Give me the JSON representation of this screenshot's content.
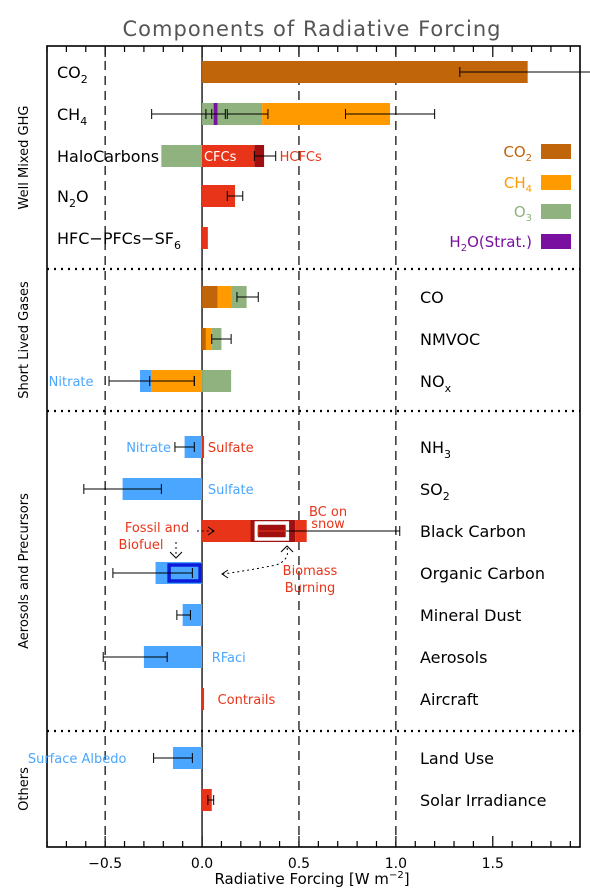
{
  "chart_data": {
    "type": "bar",
    "title": "Components of Radiative Forcing",
    "xlabel_main": "Radiative Forcing [W m",
    "xlabel_sup": "−2",
    "xlabel_close": "]",
    "xlim": [
      -0.8,
      1.95
    ],
    "xticks": [
      -0.5,
      0.0,
      0.5,
      1.0,
      1.5
    ],
    "xtick_labels": [
      "−0.5",
      "0.0",
      "0.5",
      "1.0",
      "1.5"
    ],
    "legend": [
      {
        "label": "CO",
        "sub": "2",
        "color": "#c0650a"
      },
      {
        "label": "CH",
        "sub": "4",
        "color": "#ff9a00"
      },
      {
        "label": "O",
        "sub": "3",
        "color": "#8fb27f"
      },
      {
        "label": "H",
        "sub": "2",
        "label_rest": "O(Strat.)",
        "color": "#7a10a0"
      }
    ],
    "sections": [
      {
        "name": "Well Mixed GHG"
      },
      {
        "name": "Short Lived Gases"
      },
      {
        "name": "Aerosols and Precursors"
      },
      {
        "name": "Others"
      }
    ],
    "rows": [
      {
        "label": "CO",
        "sub": "2",
        "side": "left",
        "segments": [
          {
            "from": 0,
            "to": 1.68,
            "color": "#c0650a"
          }
        ],
        "errors": [
          {
            "value": 1.68,
            "low": 1.33,
            "high": 2.03
          }
        ]
      },
      {
        "label": "CH",
        "sub": "4",
        "side": "left",
        "segments": [
          {
            "from": 0,
            "to": 0.08,
            "color": "#7a10a0"
          },
          {
            "from": 0.08,
            "to": 0.31,
            "color": "#8fb27f"
          },
          {
            "from": 0.31,
            "to": 0.97,
            "color": "#ff9a00"
          },
          {
            "from": 0.06,
            "to": 0.0,
            "color": "#8fb27f"
          }
        ],
        "errors": [
          {
            "value": 0.97,
            "low": 0.74,
            "high": 1.2
          },
          {
            "value": 0.24,
            "low": 0.13,
            "high": 0.34
          },
          {
            "value": 0.07,
            "low": 0.02,
            "high": 0.12
          },
          {
            "value": -0.11,
            "low": -0.26,
            "high": 0.05
          }
        ]
      },
      {
        "label": "HaloCarbons",
        "side": "left",
        "segments": [
          {
            "from": -0.21,
            "to": 0,
            "color": "#8fb27f"
          },
          {
            "from": 0,
            "to": 0.27,
            "color": "#e8351a"
          },
          {
            "from": 0.27,
            "to": 0.32,
            "color": "#a01010"
          }
        ],
        "errors": [
          {
            "value": 0.32,
            "low": 0.27,
            "high": 0.38
          }
        ],
        "annotations": [
          {
            "text": "CFCs",
            "x": 0.01,
            "color": "#ffffff",
            "anchor": "start"
          },
          {
            "text": "HCFCs",
            "x": 0.4,
            "color": "#e8351a",
            "anchor": "start"
          }
        ]
      },
      {
        "label": "N",
        "sub": "2",
        "label_rest": "O",
        "side": "left",
        "segments": [
          {
            "from": 0,
            "to": 0.17,
            "color": "#e8351a"
          }
        ],
        "errors": [
          {
            "value": 0.17,
            "low": 0.13,
            "high": 0.21
          }
        ]
      },
      {
        "label": "HFC−PFCs−SF",
        "sub": "6",
        "side": "left",
        "segments": [
          {
            "from": 0,
            "to": 0.03,
            "color": "#e8351a"
          }
        ],
        "errors": []
      },
      {
        "label": "CO",
        "side": "right",
        "segments": [
          {
            "from": 0,
            "to": 0.08,
            "color": "#c0650a"
          },
          {
            "from": 0.08,
            "to": 0.15,
            "color": "#ff9a00"
          },
          {
            "from": 0.15,
            "to": 0.23,
            "color": "#8fb27f"
          }
        ],
        "errors": [
          {
            "value": 0.23,
            "low": 0.18,
            "high": 0.29
          }
        ]
      },
      {
        "label": "NMVOC",
        "side": "right",
        "segments": [
          {
            "from": 0,
            "to": 0.02,
            "color": "#c0650a"
          },
          {
            "from": 0.02,
            "to": 0.05,
            "color": "#ff9a00"
          },
          {
            "from": 0.05,
            "to": 0.1,
            "color": "#8fb27f"
          }
        ],
        "errors": [
          {
            "value": 0.1,
            "low": 0.05,
            "high": 0.15
          }
        ]
      },
      {
        "label": "NO",
        "sub": "x",
        "side": "right",
        "segments": [
          {
            "from": -0.32,
            "to": -0.26,
            "color": "#4aa6ff"
          },
          {
            "from": -0.26,
            "to": 0,
            "color": "#ff9a00"
          },
          {
            "from": 0,
            "to": 0.15,
            "color": "#8fb27f"
          }
        ],
        "errors": [
          {
            "value": -0.15,
            "low": -0.27,
            "high": -0.04
          },
          {
            "value": -0.26,
            "low": -0.48,
            "high": -0.04
          }
        ],
        "annotations": [
          {
            "text": "Nitrate",
            "x": -0.56,
            "color": "#4aa6ff",
            "anchor": "end"
          }
        ]
      },
      {
        "label": "NH",
        "sub": "3",
        "side": "right",
        "segments": [
          {
            "from": -0.09,
            "to": 0,
            "color": "#4aa6ff"
          },
          {
            "from": 0,
            "to": 0.01,
            "color": "#e8351a"
          }
        ],
        "errors": [
          {
            "value": -0.09,
            "low": -0.14,
            "high": -0.04
          }
        ],
        "annotations": [
          {
            "text": "Nitrate",
            "x": -0.16,
            "color": "#4aa6ff",
            "anchor": "end"
          },
          {
            "text": "Sulfate",
            "x": 0.03,
            "color": "#e8351a",
            "anchor": "start"
          }
        ]
      },
      {
        "label": "SO",
        "sub": "2",
        "side": "right",
        "segments": [
          {
            "from": -0.41,
            "to": 0,
            "color": "#4aa6ff"
          }
        ],
        "errors": [
          {
            "value": -0.41,
            "low": -0.61,
            "high": -0.21
          }
        ],
        "annotations": [
          {
            "text": "Sulfate",
            "x": 0.03,
            "color": "#4aa6ff",
            "anchor": "start"
          }
        ]
      },
      {
        "label": "Black Carbon",
        "side": "right",
        "segments": [
          {
            "from": 0,
            "to": 0.25,
            "color": "#e8351a"
          },
          {
            "from": 0.25,
            "to": 0.48,
            "color": "#a01010"
          },
          {
            "from": 0.48,
            "to": 0.54,
            "color": "#e8351a"
          }
        ],
        "boxes": [
          {
            "from": 0.28,
            "to": 0.44,
            "stroke": "#ffffff"
          }
        ],
        "errors": [
          {
            "value": 0.54,
            "low": 0.29,
            "high": 1.02
          },
          {
            "value": 0.3,
            "low": 0.29,
            "high": 0.43,
            "color": "#e8351a"
          }
        ],
        "annotations": [
          {
            "text": "BC on",
            "x": 0.65,
            "color": "#e8351a",
            "anchor": "middle",
            "dy": -20
          },
          {
            "text": "snow",
            "x": 0.65,
            "color": "#e8351a",
            "anchor": "middle",
            "dy": -8
          }
        ]
      },
      {
        "label": "Organic Carbon",
        "side": "right",
        "segments": [
          {
            "from": -0.24,
            "to": 0,
            "color": "#4aa6ff"
          }
        ],
        "boxes": [
          {
            "from": -0.17,
            "to": -0.01,
            "stroke": "#0a1bd9"
          }
        ],
        "errors": [
          {
            "value": -0.16,
            "low": -0.46,
            "high": -0.05
          }
        ]
      },
      {
        "label": "Mineral Dust",
        "side": "right",
        "segments": [
          {
            "from": -0.1,
            "to": 0,
            "color": "#4aa6ff"
          }
        ],
        "errors": [
          {
            "value": -0.1,
            "low": -0.13,
            "high": -0.06
          }
        ]
      },
      {
        "label": "Aerosols",
        "side": "right",
        "segments": [
          {
            "from": -0.3,
            "to": 0,
            "color": "#4aa6ff"
          }
        ],
        "errors": [
          {
            "value": -0.3,
            "low": -0.51,
            "high": -0.18
          }
        ],
        "annotations": [
          {
            "text": "RFaci",
            "x": 0.05,
            "color": "#4aa6ff",
            "anchor": "start"
          }
        ]
      },
      {
        "label": "Aircraft",
        "side": "right",
        "segments": [
          {
            "from": 0,
            "to": 0.01,
            "color": "#e8351a"
          }
        ],
        "errors": [],
        "annotations": [
          {
            "text": "Contrails",
            "x": 0.08,
            "color": "#e8351a",
            "anchor": "start"
          }
        ]
      },
      {
        "label": "Land Use",
        "side": "right",
        "segments": [
          {
            "from": -0.15,
            "to": 0,
            "color": "#4aa6ff"
          }
        ],
        "errors": [
          {
            "value": -0.15,
            "low": -0.25,
            "high": -0.05
          }
        ],
        "annotations": [
          {
            "text": "Surface Albedo",
            "x": -0.39,
            "color": "#4aa6ff",
            "anchor": "end"
          }
        ]
      },
      {
        "label": "Solar Irradiance",
        "side": "right",
        "segments": [
          {
            "from": 0,
            "to": 0.05,
            "color": "#e8351a"
          }
        ],
        "errors": [
          {
            "value": 0.05,
            "low": 0.03,
            "high": 0.06
          }
        ]
      }
    ],
    "bc_notes": [
      {
        "text": "Fossil and"
      },
      {
        "text": "Biofuel"
      },
      {
        "text": "Biomass"
      },
      {
        "text": "Burning"
      }
    ]
  }
}
